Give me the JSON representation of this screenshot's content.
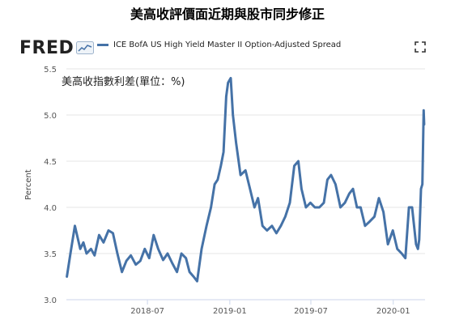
{
  "header": {
    "title": "美高收評價面近期與股市同步修正",
    "logo_text": "FRED",
    "legend_label": "ICE BofA US High Yield Master II Option-Adjusted Spread",
    "subtitle": "美高收指數利差(單位：%)"
  },
  "icons": {
    "expand": "expand-icon",
    "logo_badge": "chart-badge-icon"
  },
  "colors": {
    "series": "#4572a7",
    "grid": "#e6e6e6",
    "axis": "#ccd6eb"
  },
  "chart_data": {
    "type": "line",
    "title": "",
    "xlabel": "",
    "ylabel": "Percent",
    "ylim": [
      3.0,
      5.5
    ],
    "yticks": [
      3.0,
      3.5,
      4.0,
      4.5,
      5.0,
      5.5
    ],
    "ytick_labels": [
      "3.0",
      "3.5",
      "4.0",
      "4.5",
      "5.0",
      "5.5"
    ],
    "xlim": [
      "2018-01-01",
      "2020-03-12"
    ],
    "xtick_labels": [
      "2018-07",
      "2019-01",
      "2019-07",
      "2020-01"
    ],
    "xtick_dates": [
      "2018-07-01",
      "2019-01-01",
      "2019-07-01",
      "2020-01-01"
    ],
    "grid": "horizontal",
    "legend": "top",
    "series": [
      {
        "name": "ICE BofA US High Yield Master II Option-Adjusted Spread",
        "x": [
          "2018-01-02",
          "2018-01-10",
          "2018-01-20",
          "2018-02-01",
          "2018-02-08",
          "2018-02-15",
          "2018-02-25",
          "2018-03-05",
          "2018-03-15",
          "2018-03-25",
          "2018-04-05",
          "2018-04-15",
          "2018-04-25",
          "2018-05-05",
          "2018-05-15",
          "2018-05-25",
          "2018-06-05",
          "2018-06-15",
          "2018-06-25",
          "2018-07-05",
          "2018-07-15",
          "2018-07-25",
          "2018-08-05",
          "2018-08-15",
          "2018-08-25",
          "2018-09-05",
          "2018-09-15",
          "2018-09-25",
          "2018-10-03",
          "2018-10-12",
          "2018-10-20",
          "2018-10-30",
          "2018-11-10",
          "2018-11-20",
          "2018-11-28",
          "2018-12-05",
          "2018-12-12",
          "2018-12-18",
          "2018-12-24",
          "2018-12-28",
          "2019-01-03",
          "2019-01-08",
          "2019-01-15",
          "2019-01-25",
          "2019-02-05",
          "2019-02-15",
          "2019-02-25",
          "2019-03-05",
          "2019-03-15",
          "2019-03-25",
          "2019-04-05",
          "2019-04-15",
          "2019-04-25",
          "2019-05-05",
          "2019-05-15",
          "2019-05-25",
          "2019-06-03",
          "2019-06-10",
          "2019-06-20",
          "2019-06-30",
          "2019-07-10",
          "2019-07-20",
          "2019-07-30",
          "2019-08-07",
          "2019-08-15",
          "2019-08-25",
          "2019-09-05",
          "2019-09-15",
          "2019-09-25",
          "2019-10-03",
          "2019-10-12",
          "2019-10-20",
          "2019-10-30",
          "2019-11-10",
          "2019-11-20",
          "2019-11-30",
          "2019-12-10",
          "2019-12-20",
          "2019-12-31",
          "2020-01-10",
          "2020-01-20",
          "2020-01-28",
          "2020-02-05",
          "2020-02-12",
          "2020-02-21",
          "2020-02-25",
          "2020-02-28",
          "2020-03-03",
          "2020-03-06",
          "2020-03-09",
          "2020-03-10"
        ],
        "y": [
          3.25,
          3.5,
          3.8,
          3.55,
          3.62,
          3.5,
          3.55,
          3.48,
          3.7,
          3.62,
          3.75,
          3.72,
          3.5,
          3.3,
          3.42,
          3.48,
          3.38,
          3.42,
          3.55,
          3.45,
          3.7,
          3.55,
          3.43,
          3.5,
          3.4,
          3.3,
          3.5,
          3.45,
          3.3,
          3.25,
          3.2,
          3.55,
          3.8,
          4.0,
          4.25,
          4.3,
          4.45,
          4.6,
          5.2,
          5.35,
          5.4,
          5.0,
          4.7,
          4.35,
          4.4,
          4.2,
          4.0,
          4.1,
          3.8,
          3.75,
          3.8,
          3.72,
          3.8,
          3.9,
          4.05,
          4.45,
          4.5,
          4.2,
          4.0,
          4.05,
          4.0,
          4.0,
          4.05,
          4.3,
          4.35,
          4.25,
          4.0,
          4.05,
          4.15,
          4.2,
          4.0,
          4.0,
          3.8,
          3.85,
          3.9,
          4.1,
          3.95,
          3.6,
          3.75,
          3.55,
          3.5,
          3.45,
          4.0,
          4.0,
          3.6,
          3.55,
          3.65,
          4.2,
          4.25,
          5.05,
          4.9
        ]
      }
    ]
  }
}
